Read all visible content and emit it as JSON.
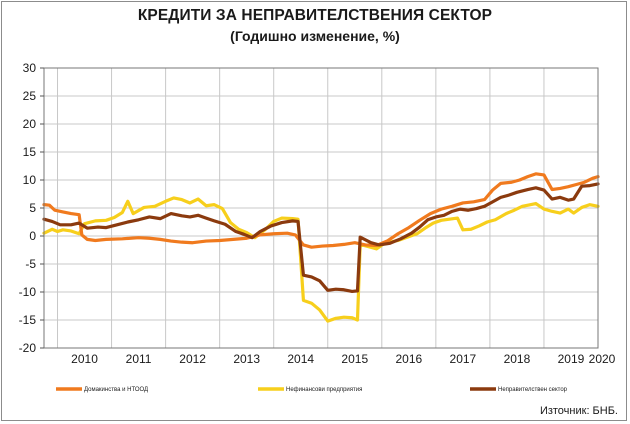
{
  "title": "КРЕДИТИ ЗА НЕПРАВИТЕЛСТВЕНИЯ СЕКТОР",
  "subtitle": "(Годишно изменение, %)",
  "source": "Източник: БНБ.",
  "colors": {
    "households": "#f07a1e",
    "nonfinancial": "#f7cf1c",
    "nongovernment": "#8b3a0e",
    "grid": "#c8c8c8",
    "plot_border": "#777777"
  },
  "chart_data": {
    "type": "line",
    "title": "КРЕДИТИ ЗА НЕПРАВИТЕЛСТВЕНИЯ СЕКТОР",
    "subtitle": "(Годишно изменение, %)",
    "xlabel": "",
    "ylabel": "",
    "xlim": [
      2009.75,
      2020.0
    ],
    "ylim": [
      -20,
      30
    ],
    "yticks": [
      "30",
      "25",
      "20",
      "15",
      "10",
      "5",
      "0",
      "-5",
      "-10",
      "-15",
      "-20"
    ],
    "ytick_values": [
      30,
      25,
      20,
      15,
      10,
      5,
      0,
      -5,
      -10,
      -15,
      -20
    ],
    "xticks": [
      "2010",
      "2011",
      "2012",
      "2013",
      "2014",
      "2015",
      "2016",
      "2017",
      "2018",
      "2019",
      "2020"
    ],
    "xtick_values": [
      2010,
      2011,
      2012,
      2013,
      2014,
      2015,
      2016,
      2017,
      2018,
      2019,
      2020
    ],
    "grid": true,
    "legend_position": "bottom",
    "series": [
      {
        "name": "Домакинства и НТООД",
        "color": "#f07a1e",
        "points": [
          [
            2009.75,
            5.6
          ],
          [
            2009.85,
            5.5
          ],
          [
            2009.95,
            4.6
          ],
          [
            2010.1,
            4.3
          ],
          [
            2010.25,
            4.0
          ],
          [
            2010.4,
            3.8
          ],
          [
            2010.45,
            0.2
          ],
          [
            2010.55,
            -0.6
          ],
          [
            2010.7,
            -0.8
          ],
          [
            2010.9,
            -0.6
          ],
          [
            2011.2,
            -0.5
          ],
          [
            2011.5,
            -0.3
          ],
          [
            2011.7,
            -0.4
          ],
          [
            2011.9,
            -0.6
          ],
          [
            2012.1,
            -0.9
          ],
          [
            2012.3,
            -1.1
          ],
          [
            2012.5,
            -1.2
          ],
          [
            2012.75,
            -0.9
          ],
          [
            2013.0,
            -0.8
          ],
          [
            2013.25,
            -0.6
          ],
          [
            2013.5,
            -0.4
          ],
          [
            2013.75,
            0.2
          ],
          [
            2014.0,
            0.4
          ],
          [
            2014.25,
            0.5
          ],
          [
            2014.4,
            0.2
          ],
          [
            2014.55,
            -1.6
          ],
          [
            2014.7,
            -2.0
          ],
          [
            2014.9,
            -1.8
          ],
          [
            2015.1,
            -1.7
          ],
          [
            2015.3,
            -1.5
          ],
          [
            2015.5,
            -1.2
          ],
          [
            2015.7,
            -1.6
          ],
          [
            2015.9,
            -1.7
          ],
          [
            2016.1,
            -0.9
          ],
          [
            2016.3,
            0.4
          ],
          [
            2016.5,
            1.5
          ],
          [
            2016.7,
            2.8
          ],
          [
            2016.9,
            4.0
          ],
          [
            2017.1,
            4.8
          ],
          [
            2017.3,
            5.3
          ],
          [
            2017.5,
            5.9
          ],
          [
            2017.7,
            6.1
          ],
          [
            2017.9,
            6.5
          ],
          [
            2018.05,
            8.2
          ],
          [
            2018.2,
            9.4
          ],
          [
            2018.4,
            9.6
          ],
          [
            2018.55,
            10.0
          ],
          [
            2018.7,
            10.6
          ],
          [
            2018.85,
            11.1
          ],
          [
            2019.0,
            10.9
          ],
          [
            2019.15,
            8.3
          ],
          [
            2019.3,
            8.5
          ],
          [
            2019.45,
            8.8
          ],
          [
            2019.6,
            9.2
          ],
          [
            2019.75,
            9.6
          ],
          [
            2019.9,
            10.3
          ],
          [
            2020.0,
            10.6
          ]
        ]
      },
      {
        "name": "Нефинансови предприятия",
        "color": "#f7cf1c",
        "points": [
          [
            2009.75,
            0.5
          ],
          [
            2009.9,
            1.2
          ],
          [
            2010.0,
            0.8
          ],
          [
            2010.1,
            1.1
          ],
          [
            2010.25,
            0.9
          ],
          [
            2010.4,
            0.4
          ],
          [
            2010.5,
            2.2
          ],
          [
            2010.7,
            2.7
          ],
          [
            2010.9,
            2.8
          ],
          [
            2011.05,
            3.3
          ],
          [
            2011.2,
            4.2
          ],
          [
            2011.3,
            6.2
          ],
          [
            2011.4,
            4.0
          ],
          [
            2011.6,
            5.1
          ],
          [
            2011.8,
            5.3
          ],
          [
            2012.0,
            6.2
          ],
          [
            2012.15,
            6.8
          ],
          [
            2012.3,
            6.5
          ],
          [
            2012.45,
            5.9
          ],
          [
            2012.6,
            6.6
          ],
          [
            2012.75,
            5.4
          ],
          [
            2012.9,
            5.6
          ],
          [
            2013.05,
            4.9
          ],
          [
            2013.2,
            2.4
          ],
          [
            2013.35,
            1.2
          ],
          [
            2013.5,
            0.6
          ],
          [
            2013.65,
            -0.3
          ],
          [
            2013.85,
            1.2
          ],
          [
            2014.0,
            2.6
          ],
          [
            2014.15,
            3.2
          ],
          [
            2014.35,
            3.1
          ],
          [
            2014.45,
            3.0
          ],
          [
            2014.55,
            -11.5
          ],
          [
            2014.7,
            -12.0
          ],
          [
            2014.85,
            -13.2
          ],
          [
            2015.0,
            -15.2
          ],
          [
            2015.15,
            -14.7
          ],
          [
            2015.3,
            -14.5
          ],
          [
            2015.45,
            -14.6
          ],
          [
            2015.55,
            -15.0
          ],
          [
            2015.6,
            -1.5
          ],
          [
            2015.75,
            -1.9
          ],
          [
            2015.9,
            -2.3
          ],
          [
            2016.05,
            -1.3
          ],
          [
            2016.3,
            -0.8
          ],
          [
            2016.5,
            -0.1
          ],
          [
            2016.65,
            0.4
          ],
          [
            2016.8,
            1.4
          ],
          [
            2016.95,
            2.3
          ],
          [
            2017.1,
            2.8
          ],
          [
            2017.25,
            3.0
          ],
          [
            2017.4,
            3.2
          ],
          [
            2017.5,
            1.1
          ],
          [
            2017.65,
            1.2
          ],
          [
            2017.8,
            1.8
          ],
          [
            2017.95,
            2.5
          ],
          [
            2018.1,
            2.9
          ],
          [
            2018.3,
            4.0
          ],
          [
            2018.45,
            4.6
          ],
          [
            2018.6,
            5.3
          ],
          [
            2018.75,
            5.6
          ],
          [
            2018.85,
            5.8
          ],
          [
            2019.0,
            4.8
          ],
          [
            2019.15,
            4.4
          ],
          [
            2019.3,
            4.1
          ],
          [
            2019.45,
            4.8
          ],
          [
            2019.55,
            4.1
          ],
          [
            2019.7,
            5.1
          ],
          [
            2019.85,
            5.6
          ],
          [
            2020.0,
            5.3
          ]
        ]
      },
      {
        "name": "Неправителствен сектор",
        "color": "#8b3a0e",
        "points": [
          [
            2009.75,
            3.0
          ],
          [
            2009.9,
            2.6
          ],
          [
            2010.05,
            2.0
          ],
          [
            2010.25,
            2.0
          ],
          [
            2010.4,
            2.3
          ],
          [
            2010.55,
            1.4
          ],
          [
            2010.75,
            1.6
          ],
          [
            2010.9,
            1.5
          ],
          [
            2011.1,
            2.0
          ],
          [
            2011.3,
            2.5
          ],
          [
            2011.5,
            2.9
          ],
          [
            2011.7,
            3.4
          ],
          [
            2011.9,
            3.1
          ],
          [
            2012.1,
            4.0
          ],
          [
            2012.3,
            3.6
          ],
          [
            2012.45,
            3.4
          ],
          [
            2012.6,
            3.7
          ],
          [
            2012.75,
            3.2
          ],
          [
            2012.9,
            2.7
          ],
          [
            2013.1,
            2.1
          ],
          [
            2013.3,
            0.8
          ],
          [
            2013.45,
            0.3
          ],
          [
            2013.6,
            -0.3
          ],
          [
            2013.75,
            0.8
          ],
          [
            2013.95,
            1.8
          ],
          [
            2014.15,
            2.4
          ],
          [
            2014.35,
            2.7
          ],
          [
            2014.45,
            2.6
          ],
          [
            2014.55,
            -7.0
          ],
          [
            2014.7,
            -7.3
          ],
          [
            2014.85,
            -8.0
          ],
          [
            2015.0,
            -9.7
          ],
          [
            2015.15,
            -9.5
          ],
          [
            2015.3,
            -9.6
          ],
          [
            2015.45,
            -9.9
          ],
          [
            2015.55,
            -9.8
          ],
          [
            2015.6,
            -0.2
          ],
          [
            2015.8,
            -1.2
          ],
          [
            2015.95,
            -1.6
          ],
          [
            2016.15,
            -1.3
          ],
          [
            2016.35,
            -0.5
          ],
          [
            2016.55,
            0.5
          ],
          [
            2016.7,
            1.6
          ],
          [
            2016.85,
            2.9
          ],
          [
            2017.0,
            3.4
          ],
          [
            2017.15,
            3.7
          ],
          [
            2017.3,
            4.4
          ],
          [
            2017.45,
            4.8
          ],
          [
            2017.6,
            4.6
          ],
          [
            2017.75,
            4.9
          ],
          [
            2017.9,
            5.3
          ],
          [
            2018.05,
            6.1
          ],
          [
            2018.2,
            6.9
          ],
          [
            2018.35,
            7.3
          ],
          [
            2018.5,
            7.8
          ],
          [
            2018.7,
            8.3
          ],
          [
            2018.85,
            8.6
          ],
          [
            2019.0,
            8.2
          ],
          [
            2019.15,
            6.6
          ],
          [
            2019.3,
            6.9
          ],
          [
            2019.45,
            6.4
          ],
          [
            2019.55,
            6.6
          ],
          [
            2019.7,
            8.9
          ],
          [
            2019.85,
            9.0
          ],
          [
            2020.0,
            9.3
          ]
        ]
      }
    ]
  }
}
